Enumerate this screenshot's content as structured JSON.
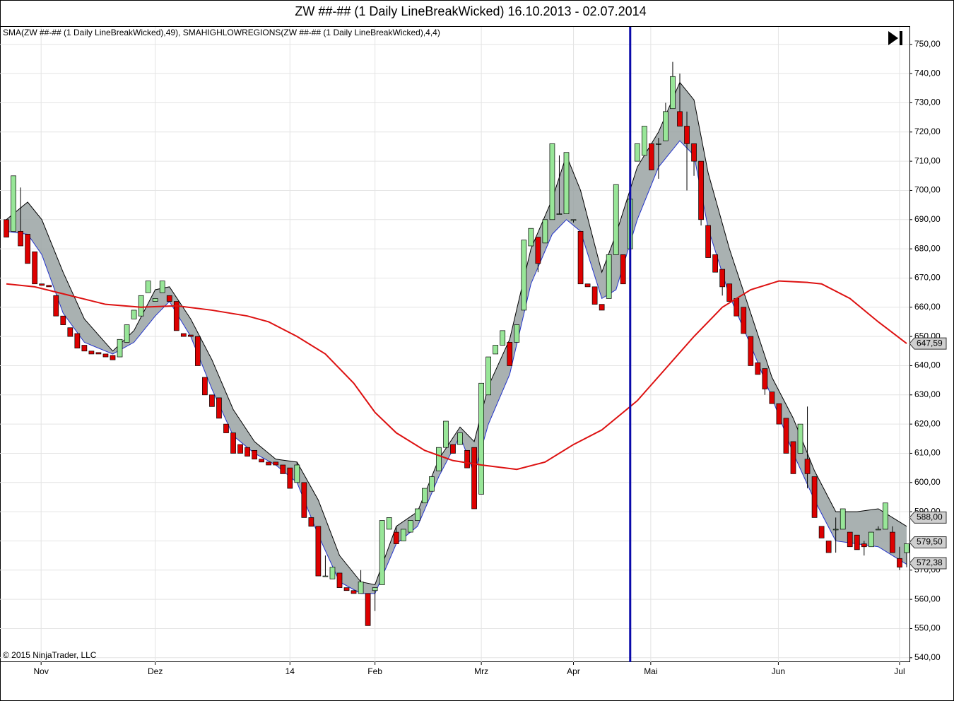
{
  "chart_data": {
    "type": "candlestick",
    "title": "ZW ##-## (1 Daily LineBreakWicked)  16.10.2013 - 02.07.2014",
    "legend_text": "SMA(ZW ##-## (1 Daily LineBreakWicked),49),  SMAHIGHLOWREGIONS(ZW ##-## (1 Daily LineBreakWicked),4,4)",
    "copyright": "© 2015 NinjaTrader, LLC",
    "up_color": "#98e698",
    "down_color": "#dd0000",
    "ohlc": [
      [
        690,
        690,
        684,
        684
      ],
      [
        686,
        705,
        686,
        705
      ],
      [
        686,
        701,
        681,
        681
      ],
      [
        685,
        685,
        675,
        675
      ],
      [
        679,
        679,
        668,
        668
      ],
      [
        668,
        668,
        667.5,
        667.5
      ],
      [
        667.5,
        667.5,
        667,
        667
      ],
      [
        664,
        664,
        657,
        657
      ],
      [
        657,
        657,
        654,
        654
      ],
      [
        653,
        653,
        650,
        650
      ],
      [
        651,
        651,
        646,
        646
      ],
      [
        647,
        647,
        645,
        645
      ],
      [
        645,
        645,
        644,
        644
      ],
      [
        644.5,
        644.5,
        644,
        644
      ],
      [
        644,
        644,
        643,
        643
      ],
      [
        643.5,
        643.5,
        642,
        642
      ],
      [
        643,
        649,
        643,
        649
      ],
      [
        648,
        654,
        648,
        654
      ],
      [
        656,
        659,
        656,
        659
      ],
      [
        657,
        664,
        657,
        664
      ],
      [
        665,
        669,
        665,
        669
      ],
      [
        662,
        663,
        662,
        663
      ],
      [
        665,
        669,
        665,
        669
      ],
      [
        664,
        664,
        662,
        662
      ],
      [
        662,
        662,
        652,
        652
      ],
      [
        651,
        651,
        650,
        650
      ],
      [
        650.5,
        650.5,
        650,
        650
      ],
      [
        650,
        650,
        640,
        640
      ],
      [
        636,
        636,
        630,
        630
      ],
      [
        630,
        630,
        626,
        626
      ],
      [
        629,
        629,
        622,
        622
      ],
      [
        620,
        620,
        617,
        617
      ],
      [
        617,
        617,
        610,
        610
      ],
      [
        613,
        613,
        610,
        610
      ],
      [
        612,
        612,
        609,
        609
      ],
      [
        611,
        611,
        608,
        608
      ],
      [
        608,
        608,
        607,
        607
      ],
      [
        607,
        607,
        606,
        606
      ],
      [
        607,
        607,
        606,
        606
      ],
      [
        606,
        606,
        603,
        603
      ],
      [
        605,
        605,
        598,
        598
      ],
      [
        600,
        607,
        600,
        606
      ],
      [
        600,
        600,
        588,
        588
      ],
      [
        588,
        588,
        585,
        585
      ],
      [
        585,
        585,
        568,
        568
      ],
      [
        568,
        575,
        568,
        568
      ],
      [
        567,
        571,
        567,
        571
      ],
      [
        569,
        569,
        564,
        564
      ],
      [
        564,
        564,
        563,
        563
      ],
      [
        563,
        563,
        562,
        562
      ],
      [
        562,
        570,
        562,
        566
      ],
      [
        562,
        562,
        551,
        551
      ],
      [
        563,
        564,
        556,
        564
      ],
      [
        565,
        587,
        565,
        587
      ],
      [
        584,
        588,
        584,
        588
      ],
      [
        583,
        585,
        579,
        579
      ],
      [
        580,
        584,
        580,
        584
      ],
      [
        583,
        587,
        583,
        587
      ],
      [
        587,
        591,
        587,
        591
      ],
      [
        593,
        598,
        593,
        598
      ],
      [
        597,
        602,
        597,
        602
      ],
      [
        604,
        612,
        604,
        612
      ],
      [
        612,
        621,
        612,
        621
      ],
      [
        613,
        613,
        610,
        610
      ],
      [
        613,
        617,
        613,
        617
      ],
      [
        611,
        611,
        605,
        605
      ],
      [
        612,
        612,
        591,
        591
      ],
      [
        596,
        634,
        596,
        634
      ],
      [
        630,
        643,
        630,
        643
      ],
      [
        644,
        647,
        644,
        647
      ],
      [
        647,
        652,
        647,
        652
      ],
      [
        648,
        648,
        640,
        640
      ],
      [
        648,
        654,
        648,
        654
      ],
      [
        659,
        683,
        659,
        683
      ],
      [
        681,
        687,
        681,
        687
      ],
      [
        684,
        684,
        672,
        675
      ],
      [
        682,
        690,
        682,
        690
      ],
      [
        690,
        716,
        690,
        716
      ],
      [
        692,
        712,
        692,
        692
      ],
      [
        692,
        713,
        692,
        713
      ],
      [
        690,
        690,
        689,
        690
      ],
      [
        686,
        686,
        668,
        668
      ],
      [
        668,
        668,
        667,
        667
      ],
      [
        667,
        667,
        661,
        661
      ],
      [
        661,
        661,
        659,
        659
      ],
      [
        663,
        678,
        663,
        678
      ],
      [
        678,
        702,
        678,
        702
      ],
      [
        678,
        678,
        668,
        668
      ],
      [
        680,
        697,
        680,
        697
      ],
      [
        710,
        716,
        710,
        716
      ],
      [
        712,
        722,
        712,
        722
      ],
      [
        716,
        716,
        707,
        707
      ],
      [
        716,
        718,
        704,
        716
      ],
      [
        717,
        730,
        717,
        727
      ],
      [
        728,
        744,
        728,
        739
      ],
      [
        727,
        740,
        723,
        722
      ],
      [
        722,
        727,
        700,
        716
      ],
      [
        716,
        716,
        705,
        710
      ],
      [
        710,
        710,
        688,
        690
      ],
      [
        688,
        688,
        677,
        677
      ],
      [
        678,
        678,
        672,
        672
      ],
      [
        673,
        673,
        664,
        667
      ],
      [
        668,
        668,
        662,
        662
      ],
      [
        663,
        663,
        657,
        657
      ],
      [
        660,
        660,
        651,
        651
      ],
      [
        650,
        650,
        640,
        640
      ],
      [
        641,
        641,
        637,
        637
      ],
      [
        639,
        639,
        630,
        632
      ],
      [
        631,
        631,
        627,
        627
      ],
      [
        627,
        627,
        620,
        620
      ],
      [
        622,
        622,
        610,
        610
      ],
      [
        614,
        614,
        603,
        603
      ],
      [
        610,
        620,
        610,
        620
      ],
      [
        608,
        626,
        598,
        603
      ],
      [
        602,
        602,
        588,
        588
      ],
      [
        585,
        585,
        581,
        581
      ],
      [
        580,
        580,
        576,
        576
      ],
      [
        584,
        588,
        576,
        584
      ],
      [
        584,
        591,
        584,
        591
      ],
      [
        583,
        583,
        578,
        578
      ],
      [
        582,
        582,
        577,
        577
      ],
      [
        579,
        580,
        575,
        578
      ],
      [
        578,
        583,
        578,
        583
      ],
      [
        584,
        585,
        584,
        584
      ],
      [
        584,
        593,
        584,
        593
      ],
      [
        583,
        585,
        576,
        576
      ],
      [
        574,
        578,
        570,
        571
      ],
      [
        576,
        579,
        571,
        579
      ]
    ],
    "sma": {
      "color": "#dd1111",
      "x": [
        0,
        4,
        9,
        14,
        19,
        24,
        29,
        34,
        37,
        41,
        45,
        49,
        52,
        55,
        59,
        63,
        67,
        72,
        76,
        80,
        84,
        87,
        89,
        93,
        97,
        101,
        105,
        109,
        113,
        115,
        119,
        123,
        127
      ],
      "values": [
        668,
        667,
        664,
        661,
        660,
        660.5,
        659,
        657,
        655,
        650,
        644,
        634,
        624,
        617,
        611,
        607.5,
        606,
        604.5,
        607,
        613,
        618,
        624,
        628,
        639,
        650,
        660,
        666,
        669,
        668.5,
        668,
        663,
        655,
        647.6
      ]
    },
    "band": {
      "fill": "#9aa3a3",
      "upper_color": "#000000",
      "lower_color": "#2233cc",
      "x": [
        0,
        3,
        5,
        8,
        11,
        15,
        18,
        21,
        23,
        26,
        29,
        32,
        35,
        38,
        41,
        44,
        47,
        50,
        52,
        55,
        58,
        61,
        64,
        66,
        68,
        71,
        74,
        77,
        79,
        81,
        84,
        86,
        89,
        92,
        95,
        97,
        99,
        102,
        105,
        108,
        111,
        114,
        117,
        120,
        123,
        127
      ],
      "upper": [
        690,
        696,
        690,
        672,
        656,
        645,
        652,
        666,
        667,
        656,
        642,
        625,
        614,
        608,
        607,
        594,
        575,
        566,
        565,
        585,
        590,
        608,
        619,
        614,
        633,
        649,
        680,
        697,
        712,
        700,
        672,
        685,
        708,
        720,
        737,
        731,
        706,
        680,
        658,
        636,
        622,
        604,
        590,
        590,
        591,
        585
      ],
      "lower": [
        686,
        685,
        678,
        658,
        648,
        644,
        648,
        657,
        662,
        650,
        632,
        616,
        610,
        606,
        600,
        582,
        566,
        562,
        562,
        579,
        585,
        602,
        616,
        603,
        620,
        637,
        668,
        685,
        690,
        686,
        663,
        666,
        690,
        708,
        717,
        712,
        687,
        664,
        647,
        629,
        610,
        594,
        580,
        579,
        578,
        572
      ]
    },
    "marker_line": {
      "x": 88,
      "color": "#0a0aaa"
    },
    "price_markers": [
      {
        "value": 647.59,
        "label": "647,59"
      },
      {
        "value": 588,
        "label": "588,00"
      },
      {
        "value": 579.5,
        "label": "579,50"
      },
      {
        "value": 572.38,
        "label": "572,38"
      }
    ],
    "xlim": [
      -0.9,
      127.4
    ],
    "ylim": [
      538.5,
      756
    ],
    "xticks": [
      {
        "value": 4.9,
        "label": "Nov"
      },
      {
        "value": 21,
        "label": "Dez"
      },
      {
        "value": 40,
        "label": "14"
      },
      {
        "value": 52,
        "label": "Feb"
      },
      {
        "value": 67,
        "label": "Mrz"
      },
      {
        "value": 80,
        "label": "Apr"
      },
      {
        "value": 90.9,
        "label": "Mai"
      },
      {
        "value": 108.9,
        "label": "Jun"
      },
      {
        "value": 126,
        "label": "Jul"
      }
    ],
    "yticks": [
      {
        "value": 540,
        "label": "540,00"
      },
      {
        "value": 550,
        "label": "550,00"
      },
      {
        "value": 560,
        "label": "560,00"
      },
      {
        "value": 570,
        "label": "570,00"
      },
      {
        "value": 580,
        "label": "580,00"
      },
      {
        "value": 590,
        "label": "590,00"
      },
      {
        "value": 600,
        "label": "600,00"
      },
      {
        "value": 610,
        "label": "610,00"
      },
      {
        "value": 620,
        "label": "620,00"
      },
      {
        "value": 630,
        "label": "630,00"
      },
      {
        "value": 640,
        "label": "640,00"
      },
      {
        "value": 650,
        "label": "650,00"
      },
      {
        "value": 660,
        "label": "660,00"
      },
      {
        "value": 670,
        "label": "670,00"
      },
      {
        "value": 680,
        "label": "680,00"
      },
      {
        "value": 690,
        "label": "690,00"
      },
      {
        "value": 700,
        "label": "700,00"
      },
      {
        "value": 710,
        "label": "710,00"
      },
      {
        "value": 720,
        "label": "720,00"
      },
      {
        "value": 730,
        "label": "730,00"
      },
      {
        "value": 740,
        "label": "740,00"
      },
      {
        "value": 750,
        "label": "750,00"
      }
    ],
    "grid": true
  }
}
